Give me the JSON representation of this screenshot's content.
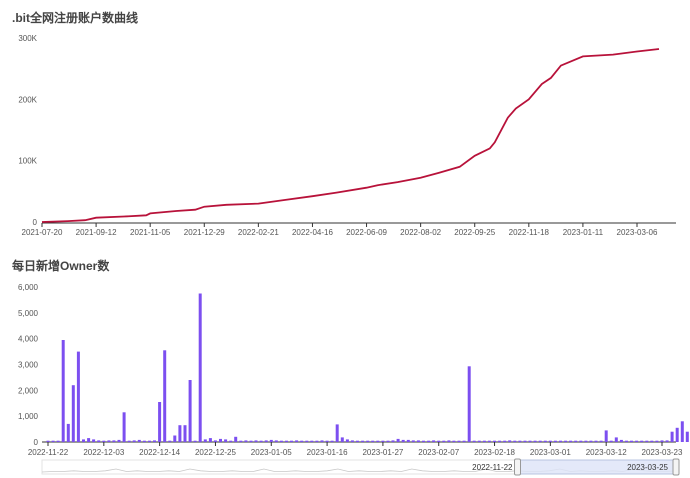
{
  "panel1": {
    "title": ".bit全网注册账户数曲线"
  },
  "panel2": {
    "title": "每日新增Owner数"
  },
  "colors": {
    "line": "#b8123a",
    "bar": "#7c4ff0",
    "axis": "#333333",
    "zoom_fill": "#dde4f8",
    "zoom_border": "#b8c4e0"
  },
  "zoom": {
    "start_label": "2022-11-22",
    "end_label": "2023-03-25",
    "range_start_frac": 0.75,
    "range_end_frac": 1.0
  },
  "chart_data": [
    {
      "type": "line",
      "title": ".bit全网注册账户数曲线",
      "x_tick_labels": [
        "2021-07-20",
        "2021-09-12",
        "2021-11-05",
        "2021-12-29",
        "2022-02-21",
        "2022-04-16",
        "2022-06-09",
        "2022-08-02",
        "2022-09-25",
        "2022-11-18",
        "2023-01-11",
        "2023-03-06"
      ],
      "y_tick_labels": [
        "0",
        "100K",
        "200K",
        "300K"
      ],
      "ylim": [
        0,
        300000
      ],
      "x": [
        "2021-07-20",
        "2021-08-15",
        "2021-09-01",
        "2021-09-12",
        "2021-10-10",
        "2021-11-01",
        "2021-11-05",
        "2021-12-01",
        "2021-12-20",
        "2021-12-29",
        "2022-01-20",
        "2022-02-21",
        "2022-03-20",
        "2022-04-16",
        "2022-05-10",
        "2022-06-09",
        "2022-06-20",
        "2022-07-10",
        "2022-08-02",
        "2022-08-20",
        "2022-09-10",
        "2022-09-25",
        "2022-10-10",
        "2022-10-15",
        "2022-10-28",
        "2022-11-05",
        "2022-11-18",
        "2022-12-01",
        "2022-12-10",
        "2022-12-20",
        "2023-01-11",
        "2023-02-10",
        "2023-03-06",
        "2023-03-28"
      ],
      "series": [
        {
          "values": [
            0,
            1500,
            3000,
            7000,
            9000,
            11000,
            14000,
            18000,
            20000,
            25000,
            28000,
            30000,
            36000,
            42000,
            48000,
            56000,
            60000,
            65000,
            72000,
            80000,
            90000,
            108000,
            120000,
            130000,
            170000,
            185000,
            200000,
            225000,
            235000,
            255000,
            270000,
            273000,
            278000,
            282000
          ]
        }
      ]
    },
    {
      "type": "bar",
      "title": "每日新增Owner数",
      "x_tick_labels": [
        "2022-11-22",
        "2022-12-03",
        "2022-12-14",
        "2022-12-25",
        "2023-01-05",
        "2023-01-16",
        "2023-01-27",
        "2023-02-07",
        "2023-02-18",
        "2023-03-01",
        "2023-03-12",
        "2023-03-23"
      ],
      "y_tick_labels": [
        "0",
        "1,000",
        "2,000",
        "3,000",
        "4,000",
        "5,000",
        "6,000"
      ],
      "ylim": [
        0,
        6000
      ],
      "start_date": "2022-11-22",
      "values": [
        50,
        50,
        50,
        3950,
        700,
        2200,
        3500,
        100,
        150,
        100,
        60,
        50,
        60,
        60,
        80,
        1150,
        50,
        60,
        80,
        50,
        50,
        60,
        1550,
        3550,
        50,
        250,
        650,
        650,
        2400,
        50,
        5750,
        100,
        150,
        60,
        120,
        100,
        50,
        200,
        50,
        60,
        50,
        60,
        50,
        60,
        80,
        60,
        50,
        50,
        50,
        60,
        50,
        50,
        50,
        50,
        60,
        50,
        50,
        680,
        180,
        100,
        60,
        50,
        50,
        50,
        50,
        50,
        50,
        50,
        60,
        120,
        80,
        80,
        60,
        60,
        50,
        50,
        60,
        50,
        50,
        60,
        50,
        50,
        50,
        2930,
        50,
        50,
        50,
        50,
        50,
        50,
        50,
        60,
        50,
        50,
        50,
        50,
        50,
        50,
        50,
        50,
        50,
        50,
        50,
        50,
        50,
        50,
        50,
        50,
        50,
        50,
        450,
        50,
        180,
        80,
        50,
        50,
        50,
        50,
        50,
        50,
        50,
        60,
        60,
        400,
        550,
        800,
        400,
        380,
        250
      ]
    }
  ]
}
